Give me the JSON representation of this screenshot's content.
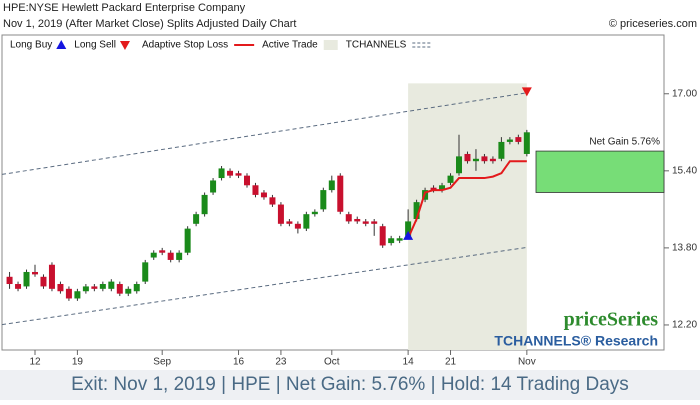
{
  "header": {
    "title": "HPE:NYSE Hewlett Packard Enterprise Company",
    "subtitle": "Nov 1, 2019 (After Market Close)  Splits Adjusted Daily Chart",
    "credit": "© priceseries.com"
  },
  "chart_data": {
    "type": "candlestick",
    "categories": [
      null,
      null,
      null,
      "12",
      null,
      null,
      null,
      null,
      "19",
      null,
      null,
      null,
      null,
      null,
      null,
      null,
      null,
      null,
      "Sep",
      null,
      null,
      null,
      null,
      null,
      null,
      null,
      null,
      "16",
      null,
      null,
      null,
      null,
      "23",
      null,
      null,
      null,
      null,
      null,
      "Oct",
      null,
      null,
      null,
      null,
      null,
      null,
      null,
      null,
      "14",
      null,
      null,
      null,
      null,
      "21",
      null,
      null,
      null,
      null,
      null,
      null,
      null,
      null,
      "Nov"
    ],
    "open": [
      13.2,
      13.05,
      13.0,
      13.3,
      13.2,
      13.45,
      13.05,
      12.95,
      12.75,
      12.9,
      13.0,
      12.95,
      12.95,
      13.05,
      12.85,
      12.9,
      13.1,
      13.6,
      13.75,
      13.7,
      13.55,
      13.7,
      14.3,
      14.5,
      14.95,
      15.25,
      15.4,
      15.35,
      15.3,
      15.1,
      14.95,
      14.85,
      14.7,
      14.35,
      14.3,
      14.2,
      14.5,
      14.6,
      15.0,
      15.3,
      14.5,
      14.4,
      14.35,
      14.35,
      14.25,
      13.9,
      13.95,
      14.05,
      14.4,
      14.8,
      15.05,
      15.0,
      15.15,
      15.35,
      15.75,
      15.6,
      15.7,
      15.65,
      15.65,
      16.0,
      16.1,
      15.75
    ],
    "high": [
      13.3,
      13.1,
      13.35,
      13.45,
      13.25,
      13.5,
      13.1,
      13.0,
      12.95,
      13.05,
      13.05,
      13.1,
      13.15,
      13.1,
      13.0,
      13.1,
      13.55,
      13.75,
      13.8,
      13.75,
      13.75,
      14.25,
      14.55,
      14.95,
      15.25,
      15.5,
      15.45,
      15.4,
      15.35,
      15.15,
      15.0,
      14.9,
      14.75,
      14.4,
      14.35,
      14.55,
      14.6,
      15.05,
      15.3,
      15.35,
      14.55,
      14.45,
      14.4,
      14.4,
      14.3,
      14.05,
      14.05,
      14.6,
      14.8,
      15.05,
      15.1,
      15.15,
      15.35,
      16.15,
      15.8,
      15.85,
      15.75,
      15.7,
      16.1,
      16.1,
      16.15,
      16.25
    ],
    "low": [
      12.95,
      12.9,
      12.95,
      13.2,
      12.95,
      12.9,
      12.85,
      12.7,
      12.7,
      12.85,
      12.9,
      12.9,
      12.9,
      12.8,
      12.8,
      12.85,
      13.05,
      13.55,
      13.65,
      13.5,
      13.5,
      13.65,
      14.25,
      14.45,
      14.9,
      15.2,
      15.25,
      15.25,
      15.05,
      14.85,
      14.8,
      14.65,
      14.25,
      14.25,
      14.1,
      14.15,
      14.45,
      14.55,
      14.95,
      14.5,
      14.3,
      14.3,
      14.25,
      14.05,
      13.8,
      13.85,
      13.9,
      14.0,
      14.35,
      14.75,
      14.95,
      14.95,
      15.1,
      15.3,
      15.55,
      15.4,
      15.55,
      15.55,
      15.6,
      15.95,
      15.95,
      15.7
    ],
    "close": [
      13.05,
      12.95,
      13.3,
      13.25,
      13.0,
      12.95,
      12.9,
      12.75,
      12.9,
      13.0,
      12.95,
      13.05,
      13.1,
      12.85,
      12.95,
      13.05,
      13.5,
      13.7,
      13.7,
      13.55,
      13.7,
      14.2,
      14.5,
      14.9,
      15.2,
      15.45,
      15.3,
      15.3,
      15.1,
      14.9,
      14.85,
      14.7,
      14.3,
      14.3,
      14.2,
      14.5,
      14.55,
      15.0,
      15.2,
      14.55,
      14.35,
      14.35,
      14.3,
      14.3,
      13.85,
      14.0,
      14.0,
      14.35,
      14.75,
      15.0,
      15.0,
      15.1,
      15.3,
      15.7,
      15.6,
      15.65,
      15.6,
      15.6,
      16.0,
      16.05,
      16.0,
      16.2
    ],
    "up_color": "#1a8a1a",
    "down_color": "#c8102e",
    "stop_loss": {
      "name": "Adaptive Stop Loss",
      "color": "#e31a1c",
      "values": [
        null,
        null,
        null,
        null,
        null,
        null,
        null,
        null,
        null,
        null,
        null,
        null,
        null,
        null,
        null,
        null,
        null,
        null,
        null,
        null,
        null,
        null,
        null,
        null,
        null,
        null,
        null,
        null,
        null,
        null,
        null,
        null,
        null,
        null,
        null,
        null,
        null,
        null,
        null,
        null,
        null,
        null,
        null,
        null,
        null,
        null,
        null,
        14.0,
        14.4,
        14.95,
        15.0,
        15.0,
        15.05,
        15.25,
        15.25,
        15.25,
        15.25,
        15.28,
        15.35,
        15.6,
        15.6,
        15.6
      ]
    },
    "active_trade": {
      "name": "Active Trade",
      "color": "#e8eadf"
    },
    "long_buy": {
      "name": "Long Buy",
      "color": "#1515e0",
      "value": 14.05
    },
    "long_sell": {
      "name": "Long Sell",
      "color": "#e31a1c",
      "value": 17.05
    },
    "channel": {
      "name": "TCHANNELS",
      "color": "#5a6b80",
      "upper": [
        15.35,
        17.02
      ],
      "lower": [
        12.23,
        13.81
      ]
    },
    "net_gain": {
      "label": "Net Gain 5.76%",
      "color": "#77dd77",
      "from": 14.95,
      "to": 15.81
    },
    "ylim": [
      11.68,
      18.22
    ],
    "yticks": [
      {
        "value": 12.2,
        "label": "12.20"
      },
      {
        "value": 13.8,
        "label": "13.80"
      },
      {
        "value": 15.4,
        "label": "15.40"
      },
      {
        "value": 17,
        "label": "17.00"
      }
    ],
    "watermark": [
      "priceSeries",
      "TCHANNELS® Research"
    ]
  },
  "footer": "Exit: Nov 1, 2019 | HPE | Net Gain: 5.76% | Hold: 14 Trading Days"
}
